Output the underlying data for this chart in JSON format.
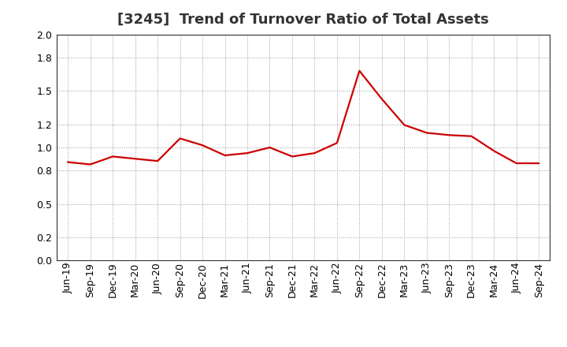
{
  "title": "[3245]  Trend of Turnover Ratio of Total Assets",
  "x_labels": [
    "Jun-19",
    "Sep-19",
    "Dec-19",
    "Mar-20",
    "Jun-20",
    "Sep-20",
    "Dec-20",
    "Mar-21",
    "Jun-21",
    "Sep-21",
    "Dec-21",
    "Mar-22",
    "Jun-22",
    "Sep-22",
    "Dec-22",
    "Mar-23",
    "Jun-23",
    "Sep-23",
    "Dec-23",
    "Mar-24",
    "Jun-24",
    "Sep-24"
  ],
  "values": [
    0.87,
    0.85,
    0.92,
    0.9,
    0.88,
    1.08,
    1.02,
    0.93,
    0.95,
    1.0,
    0.92,
    0.95,
    1.04,
    1.68,
    1.43,
    1.2,
    1.13,
    1.11,
    1.1,
    0.97,
    0.86,
    0.86
  ],
  "line_color": "#cc0000",
  "background_color": "#ffffff",
  "plot_bg_color": "#ffffff",
  "grid_color": "#999999",
  "ylim": [
    0.0,
    2.0
  ],
  "yticks": [
    0.0,
    0.2,
    0.5,
    0.8,
    1.0,
    1.2,
    1.5,
    1.8,
    2.0
  ],
  "title_fontsize": 13,
  "axis_fontsize": 9,
  "line_width": 1.6
}
